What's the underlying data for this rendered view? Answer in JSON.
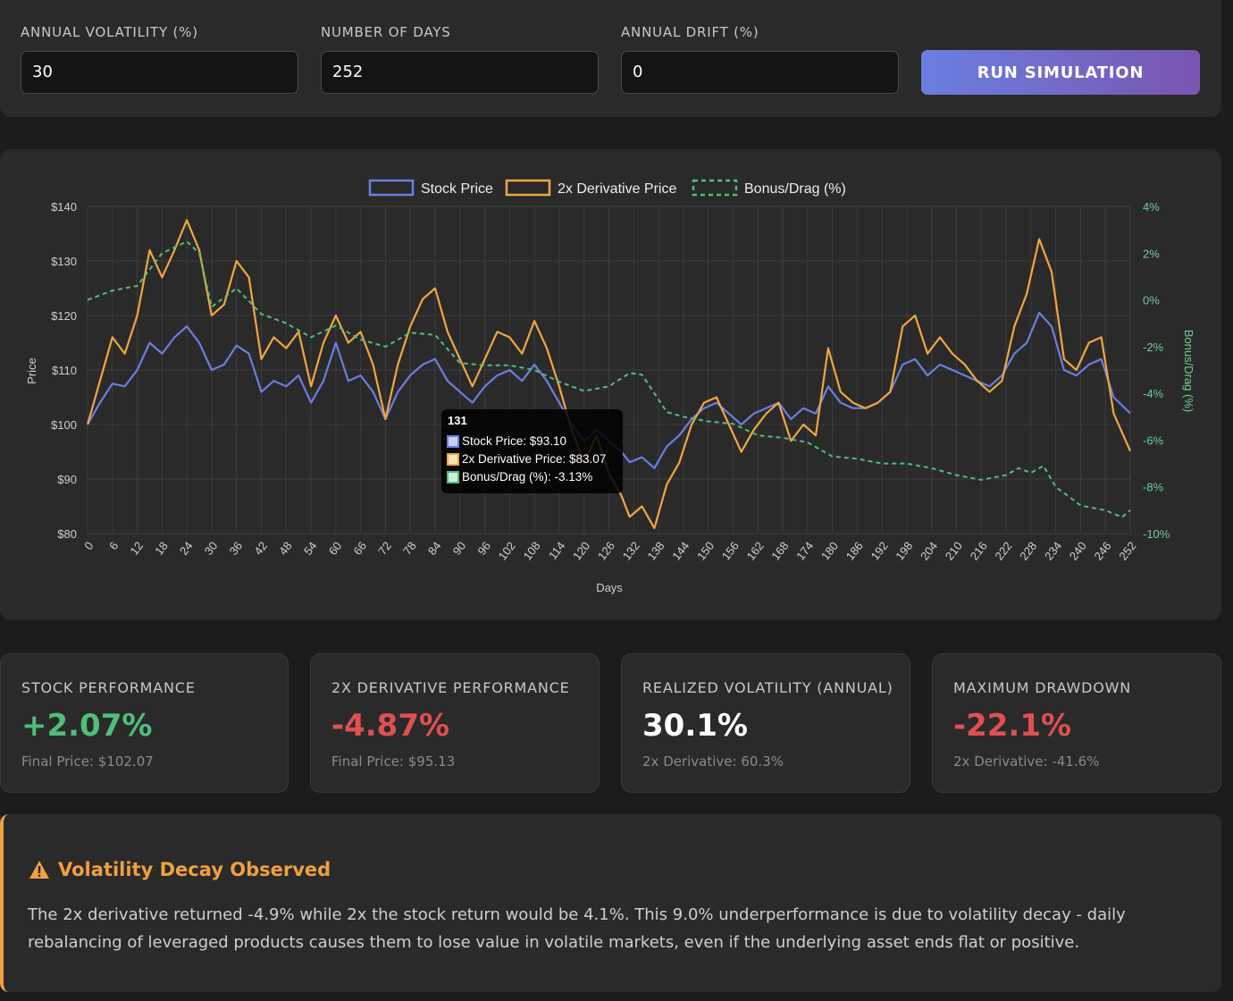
{
  "controls": {
    "volatility": {
      "label": "ANNUAL VOLATILITY (%)",
      "value": "30"
    },
    "days": {
      "label": "NUMBER OF DAYS",
      "value": "252"
    },
    "drift": {
      "label": "ANNUAL DRIFT (%)",
      "value": "0"
    },
    "run_label": "RUN SIMULATION"
  },
  "chart_data": {
    "type": "line",
    "xlabel": "Days",
    "ylabel": "Price",
    "y2label": "Bonus/Drag (%)",
    "ylim": [
      80,
      140
    ],
    "y2lim": [
      -10,
      4
    ],
    "xlim": [
      0,
      252
    ],
    "y_ticks": [
      "$140",
      "$130",
      "$120",
      "$110",
      "$100",
      "$90",
      "$80"
    ],
    "y2_ticks": [
      "4%",
      "2%",
      "0%",
      "-2%",
      "-4%",
      "-6%",
      "-8%",
      "-10%"
    ],
    "x_ticks": [
      "0",
      "6",
      "12",
      "18",
      "24",
      "30",
      "36",
      "42",
      "48",
      "54",
      "60",
      "66",
      "72",
      "78",
      "84",
      "90",
      "96",
      "102",
      "108",
      "114",
      "120",
      "126",
      "132",
      "138",
      "144",
      "150",
      "156",
      "162",
      "168",
      "174",
      "180",
      "186",
      "192",
      "198",
      "204",
      "210",
      "216",
      "222",
      "228",
      "234",
      "240",
      "246",
      "252"
    ],
    "legend_position": "top-center",
    "series": [
      {
        "name": "Stock Price",
        "color": "#6b7ee0",
        "style": "solid",
        "axis": "left",
        "points": [
          [
            0,
            100
          ],
          [
            3,
            104
          ],
          [
            6,
            107.5
          ],
          [
            9,
            107
          ],
          [
            12,
            110
          ],
          [
            15,
            115
          ],
          [
            18,
            113
          ],
          [
            21,
            116
          ],
          [
            24,
            118
          ],
          [
            27,
            115
          ],
          [
            30,
            110
          ],
          [
            33,
            111
          ],
          [
            36,
            114.5
          ],
          [
            39,
            113
          ],
          [
            42,
            106
          ],
          [
            45,
            108
          ],
          [
            48,
            107
          ],
          [
            51,
            109
          ],
          [
            54,
            104
          ],
          [
            57,
            108
          ],
          [
            60,
            115
          ],
          [
            63,
            108
          ],
          [
            66,
            109
          ],
          [
            69,
            106
          ],
          [
            72,
            101
          ],
          [
            75,
            106
          ],
          [
            78,
            109
          ],
          [
            81,
            111
          ],
          [
            84,
            112
          ],
          [
            87,
            108
          ],
          [
            90,
            106
          ],
          [
            93,
            104
          ],
          [
            96,
            107
          ],
          [
            99,
            109
          ],
          [
            102,
            110
          ],
          [
            105,
            108
          ],
          [
            108,
            111
          ],
          [
            111,
            108
          ],
          [
            114,
            104
          ],
          [
            117,
            100
          ],
          [
            120,
            97
          ],
          [
            123,
            99
          ],
          [
            126,
            97
          ],
          [
            129,
            95
          ],
          [
            131,
            93.1
          ],
          [
            134,
            94
          ],
          [
            137,
            92
          ],
          [
            140,
            96
          ],
          [
            143,
            98
          ],
          [
            146,
            101
          ],
          [
            149,
            103
          ],
          [
            152,
            104
          ],
          [
            155,
            102
          ],
          [
            158,
            100
          ],
          [
            161,
            102
          ],
          [
            164,
            103
          ],
          [
            167,
            104
          ],
          [
            170,
            101
          ],
          [
            173,
            103
          ],
          [
            176,
            102
          ],
          [
            179,
            107
          ],
          [
            182,
            104
          ],
          [
            185,
            103
          ],
          [
            188,
            103
          ],
          [
            191,
            104
          ],
          [
            194,
            106
          ],
          [
            197,
            111
          ],
          [
            200,
            112
          ],
          [
            203,
            109
          ],
          [
            206,
            111
          ],
          [
            209,
            110
          ],
          [
            212,
            109
          ],
          [
            215,
            108
          ],
          [
            218,
            107
          ],
          [
            221,
            109
          ],
          [
            224,
            113
          ],
          [
            227,
            115
          ],
          [
            230,
            120.5
          ],
          [
            233,
            118
          ],
          [
            236,
            110
          ],
          [
            239,
            109
          ],
          [
            242,
            111
          ],
          [
            245,
            112
          ],
          [
            248,
            105
          ],
          [
            252,
            102.07
          ]
        ]
      },
      {
        "name": "2x Derivative Price",
        "color": "#f0a642",
        "style": "solid",
        "axis": "left",
        "points": [
          [
            0,
            100
          ],
          [
            3,
            108
          ],
          [
            6,
            116
          ],
          [
            9,
            113
          ],
          [
            12,
            120
          ],
          [
            15,
            132
          ],
          [
            18,
            127
          ],
          [
            21,
            132
          ],
          [
            24,
            137.5
          ],
          [
            27,
            132
          ],
          [
            30,
            120
          ],
          [
            33,
            122
          ],
          [
            36,
            130
          ],
          [
            39,
            127
          ],
          [
            42,
            112
          ],
          [
            45,
            116
          ],
          [
            48,
            114
          ],
          [
            51,
            117
          ],
          [
            54,
            107
          ],
          [
            57,
            115
          ],
          [
            60,
            120
          ],
          [
            63,
            115
          ],
          [
            66,
            117
          ],
          [
            69,
            111
          ],
          [
            72,
            101
          ],
          [
            75,
            111
          ],
          [
            78,
            118
          ],
          [
            81,
            123
          ],
          [
            84,
            125
          ],
          [
            87,
            117
          ],
          [
            90,
            112
          ],
          [
            93,
            107
          ],
          [
            96,
            112
          ],
          [
            99,
            117
          ],
          [
            102,
            116
          ],
          [
            105,
            113
          ],
          [
            108,
            119
          ],
          [
            111,
            114
          ],
          [
            114,
            107
          ],
          [
            117,
            99
          ],
          [
            120,
            93
          ],
          [
            123,
            98
          ],
          [
            126,
            91
          ],
          [
            129,
            87
          ],
          [
            131,
            83.07
          ],
          [
            134,
            85
          ],
          [
            137,
            81
          ],
          [
            140,
            89
          ],
          [
            143,
            93
          ],
          [
            146,
            100
          ],
          [
            149,
            104
          ],
          [
            152,
            105
          ],
          [
            155,
            100
          ],
          [
            158,
            95
          ],
          [
            161,
            99
          ],
          [
            164,
            102
          ],
          [
            167,
            104
          ],
          [
            170,
            97
          ],
          [
            173,
            100
          ],
          [
            176,
            98
          ],
          [
            179,
            114
          ],
          [
            182,
            106
          ],
          [
            185,
            104
          ],
          [
            188,
            103
          ],
          [
            191,
            104
          ],
          [
            194,
            106
          ],
          [
            197,
            118
          ],
          [
            200,
            120
          ],
          [
            203,
            113
          ],
          [
            206,
            116
          ],
          [
            209,
            113
          ],
          [
            212,
            111
          ],
          [
            215,
            108
          ],
          [
            218,
            106
          ],
          [
            221,
            108
          ],
          [
            224,
            118
          ],
          [
            227,
            124
          ],
          [
            230,
            134
          ],
          [
            233,
            128
          ],
          [
            236,
            112
          ],
          [
            239,
            110
          ],
          [
            242,
            115
          ],
          [
            245,
            116
          ],
          [
            248,
            102
          ],
          [
            252,
            95.13
          ]
        ]
      },
      {
        "name": "Bonus/Drag (%)",
        "color": "#4fbf7a",
        "style": "dashed",
        "axis": "right",
        "points": [
          [
            0,
            0
          ],
          [
            6,
            0.4
          ],
          [
            12,
            0.6
          ],
          [
            18,
            2
          ],
          [
            24,
            2.5
          ],
          [
            27,
            2
          ],
          [
            30,
            -0.3
          ],
          [
            36,
            0.5
          ],
          [
            42,
            -0.6
          ],
          [
            48,
            -1
          ],
          [
            54,
            -1.6
          ],
          [
            60,
            -1.1
          ],
          [
            66,
            -1.7
          ],
          [
            72,
            -2
          ],
          [
            78,
            -1.4
          ],
          [
            84,
            -1.5
          ],
          [
            90,
            -2.7
          ],
          [
            96,
            -2.8
          ],
          [
            102,
            -2.8
          ],
          [
            108,
            -3
          ],
          [
            114,
            -3.5
          ],
          [
            120,
            -3.9
          ],
          [
            126,
            -3.7
          ],
          [
            131,
            -3.13
          ],
          [
            134,
            -3.2
          ],
          [
            140,
            -4.8
          ],
          [
            144,
            -5
          ],
          [
            150,
            -5.2
          ],
          [
            156,
            -5.3
          ],
          [
            162,
            -5.8
          ],
          [
            168,
            -5.9
          ],
          [
            174,
            -6.1
          ],
          [
            180,
            -6.7
          ],
          [
            186,
            -6.8
          ],
          [
            192,
            -7
          ],
          [
            198,
            -7
          ],
          [
            204,
            -7.2
          ],
          [
            210,
            -7.5
          ],
          [
            216,
            -7.7
          ],
          [
            222,
            -7.5
          ],
          [
            225,
            -7.2
          ],
          [
            228,
            -7.4
          ],
          [
            231,
            -7.1
          ],
          [
            234,
            -8
          ],
          [
            240,
            -8.8
          ],
          [
            246,
            -9
          ],
          [
            250,
            -9.3
          ],
          [
            252,
            -9.0
          ]
        ]
      }
    ],
    "tooltip": {
      "title": "131",
      "rows": [
        "Stock Price: $93.10",
        "2x Derivative Price: $83.07",
        "Bonus/Drag (%): -3.13%"
      ]
    }
  },
  "stats": [
    {
      "label": "STOCK PERFORMANCE",
      "value": "+2.07%",
      "sub": "Final Price: $102.07",
      "tone": "pos"
    },
    {
      "label": "2X DERIVATIVE PERFORMANCE",
      "value": "-4.87%",
      "sub": "Final Price: $95.13",
      "tone": "neg"
    },
    {
      "label": "REALIZED VOLATILITY (ANNUAL)",
      "value": "30.1%",
      "sub": "2x Derivative: 60.3%",
      "tone": "neutral"
    },
    {
      "label": "MAXIMUM DRAWDOWN",
      "value": "-22.1%",
      "sub": "2x Derivative: -41.6%",
      "tone": "neg"
    }
  ],
  "alert": {
    "title": "Volatility Decay Observed",
    "body": "The 2x derivative returned -4.9% while 2x the stock return would be 4.1%. This 9.0% underperformance is due to volatility decay - daily rebalancing of leveraged products causes them to lose value in volatile markets, even if the underlying asset ends flat or positive.",
    "color": "#f0a040"
  }
}
